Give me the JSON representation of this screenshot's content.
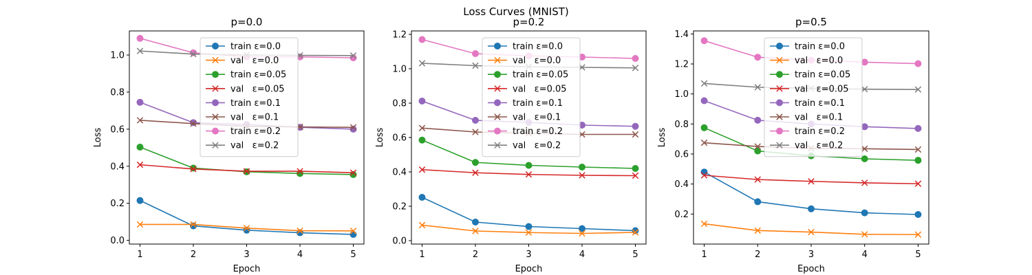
{
  "figure": {
    "suptitle": "Loss Curves (MNIST)"
  },
  "chart_data": [
    {
      "type": "line",
      "title": "p=0.0",
      "xlabel": "Epoch",
      "ylabel": "Loss",
      "x": [
        1,
        2,
        3,
        4,
        5
      ],
      "xlim": [
        0.8,
        5.2
      ],
      "ylim": [
        -0.02,
        1.13
      ],
      "yticks": [
        0.0,
        0.2,
        0.4,
        0.6,
        0.8,
        1.0
      ],
      "ytick_labels": [
        "0.0",
        "0.2",
        "0.4",
        "0.6",
        "0.8",
        "1.0"
      ],
      "grid": false,
      "legend_position": "upper center",
      "series": [
        {
          "name": "train ε=0.0",
          "color": "#1f77b4",
          "marker": "circle",
          "values": [
            0.215,
            0.078,
            0.055,
            0.041,
            0.032
          ]
        },
        {
          "name": "val   ε=0.0",
          "color": "#ff7f0e",
          "marker": "x",
          "values": [
            0.086,
            0.086,
            0.066,
            0.052,
            0.051
          ]
        },
        {
          "name": "train ε=0.05",
          "color": "#2ca02c",
          "marker": "circle",
          "values": [
            0.503,
            0.39,
            0.37,
            0.361,
            0.355
          ]
        },
        {
          "name": "val   ε=0.05",
          "color": "#d62728",
          "marker": "x",
          "values": [
            0.408,
            0.385,
            0.373,
            0.373,
            0.365
          ]
        },
        {
          "name": "train ε=0.1",
          "color": "#9467bd",
          "marker": "circle",
          "values": [
            0.745,
            0.635,
            0.625,
            0.61,
            0.6
          ]
        },
        {
          "name": "val   ε=0.1",
          "color": "#8c564b",
          "marker": "x",
          "values": [
            0.648,
            0.63,
            0.615,
            0.612,
            0.61
          ]
        },
        {
          "name": "train ε=0.2",
          "color": "#e377c2",
          "marker": "circle",
          "values": [
            1.09,
            1.012,
            0.99,
            0.99,
            0.985
          ]
        },
        {
          "name": "val   ε=0.2",
          "color": "#7f7f7f",
          "marker": "x",
          "values": [
            1.022,
            1.005,
            1.0,
            0.998,
            0.997
          ]
        }
      ]
    },
    {
      "type": "line",
      "title": "p=0.2",
      "xlabel": "Epoch",
      "ylabel": "Loss",
      "x": [
        1,
        2,
        3,
        4,
        5
      ],
      "xlim": [
        0.8,
        5.2
      ],
      "ylim": [
        -0.02,
        1.22
      ],
      "yticks": [
        0.0,
        0.2,
        0.4,
        0.6,
        0.8,
        1.0,
        1.2
      ],
      "ytick_labels": [
        "0.0",
        "0.2",
        "0.4",
        "0.6",
        "0.8",
        "1.0",
        "1.2"
      ],
      "grid": false,
      "legend_position": "upper center",
      "series": [
        {
          "name": "train ε=0.0",
          "color": "#1f77b4",
          "marker": "circle",
          "values": [
            0.252,
            0.108,
            0.082,
            0.07,
            0.058
          ]
        },
        {
          "name": "val   ε=0.0",
          "color": "#ff7f0e",
          "marker": "x",
          "values": [
            0.09,
            0.056,
            0.047,
            0.042,
            0.048
          ]
        },
        {
          "name": "train ε=0.05",
          "color": "#2ca02c",
          "marker": "circle",
          "values": [
            0.585,
            0.455,
            0.438,
            0.428,
            0.42
          ]
        },
        {
          "name": "val   ε=0.05",
          "color": "#d62728",
          "marker": "x",
          "values": [
            0.413,
            0.395,
            0.385,
            0.38,
            0.378
          ]
        },
        {
          "name": "train ε=0.1",
          "color": "#9467bd",
          "marker": "circle",
          "values": [
            0.812,
            0.7,
            0.688,
            0.672,
            0.665
          ]
        },
        {
          "name": "val   ε=0.1",
          "color": "#8c564b",
          "marker": "x",
          "values": [
            0.655,
            0.632,
            0.625,
            0.618,
            0.618
          ]
        },
        {
          "name": "train ε=0.2",
          "color": "#e377c2",
          "marker": "circle",
          "values": [
            1.17,
            1.088,
            1.075,
            1.068,
            1.06
          ]
        },
        {
          "name": "val   ε=0.2",
          "color": "#7f7f7f",
          "marker": "x",
          "values": [
            1.032,
            1.018,
            1.012,
            1.008,
            1.005
          ]
        }
      ]
    },
    {
      "type": "line",
      "title": "p=0.5",
      "xlabel": "Epoch",
      "ylabel": "Loss",
      "x": [
        1,
        2,
        3,
        4,
        5
      ],
      "xlim": [
        0.8,
        5.2
      ],
      "ylim": [
        0.0,
        1.42
      ],
      "yticks": [
        0.2,
        0.4,
        0.6,
        0.8,
        1.0,
        1.2,
        1.4
      ],
      "ytick_labels": [
        "0.2",
        "0.4",
        "0.6",
        "0.8",
        "1.0",
        "1.2",
        "1.4"
      ],
      "grid": false,
      "legend_position": "upper center",
      "series": [
        {
          "name": "train ε=0.0",
          "color": "#1f77b4",
          "marker": "circle",
          "values": [
            0.48,
            0.282,
            0.235,
            0.208,
            0.197
          ]
        },
        {
          "name": "val   ε=0.0",
          "color": "#ff7f0e",
          "marker": "x",
          "values": [
            0.135,
            0.09,
            0.08,
            0.065,
            0.063
          ]
        },
        {
          "name": "train ε=0.05",
          "color": "#2ca02c",
          "marker": "circle",
          "values": [
            0.775,
            0.62,
            0.588,
            0.568,
            0.558
          ]
        },
        {
          "name": "val   ε=0.05",
          "color": "#d62728",
          "marker": "x",
          "values": [
            0.458,
            0.43,
            0.418,
            0.408,
            0.402
          ]
        },
        {
          "name": "train ε=0.1",
          "color": "#9467bd",
          "marker": "circle",
          "values": [
            0.955,
            0.825,
            0.8,
            0.782,
            0.77
          ]
        },
        {
          "name": "val   ε=0.1",
          "color": "#8c564b",
          "marker": "x",
          "values": [
            0.675,
            0.65,
            0.638,
            0.635,
            0.63
          ]
        },
        {
          "name": "train ε=0.2",
          "color": "#e377c2",
          "marker": "circle",
          "values": [
            1.355,
            1.245,
            1.225,
            1.212,
            1.202
          ]
        },
        {
          "name": "val   ε=0.2",
          "color": "#7f7f7f",
          "marker": "x",
          "values": [
            1.07,
            1.045,
            1.038,
            1.032,
            1.03
          ]
        }
      ]
    }
  ]
}
